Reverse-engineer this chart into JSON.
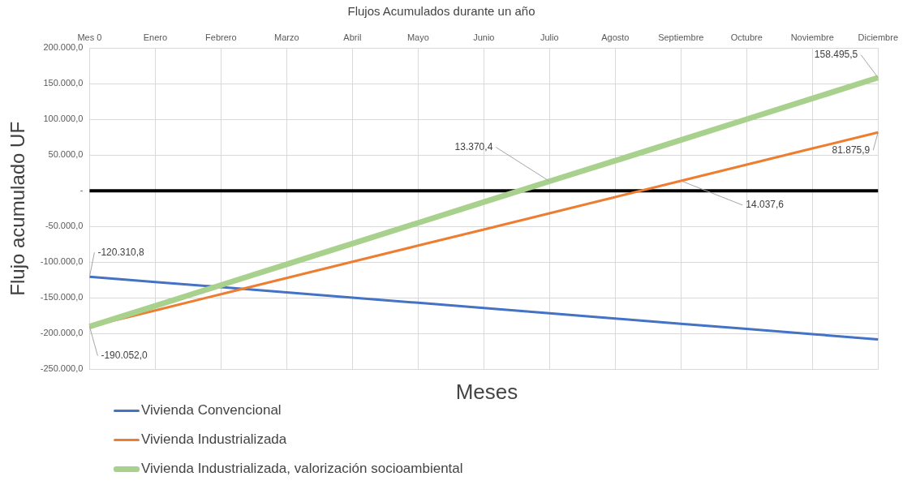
{
  "chart_data": {
    "type": "line",
    "title": "Flujos Acumulados durante un año",
    "xlabel": "Meses",
    "ylabel": "Flujo acumulado UF",
    "categories": [
      "Mes 0",
      "Enero",
      "Febrero",
      "Marzo",
      "Abril",
      "Mayo",
      "Junio",
      "Julio",
      "Agosto",
      "Septiembre",
      "Octubre",
      "Noviembre",
      "Diciembre"
    ],
    "series": [
      {
        "name": "Vivienda Convencional",
        "color": "#4472c4",
        "values": [
          -120310.8,
          -127600,
          -134900,
          -142200,
          -149500,
          -156800,
          -164200,
          -171500,
          -178800,
          -186100,
          -193400,
          -200700,
          -208000
        ],
        "value_labels": [
          "-120.310,8",
          null,
          null,
          null,
          null,
          null,
          null,
          null,
          null,
          null,
          null,
          null,
          null
        ]
      },
      {
        "name": "Vivienda Industrializada",
        "color": "#ed7d31",
        "values": [
          -190052.0,
          -167400,
          -144700,
          -122100,
          -99400,
          -76700,
          -54100,
          -31400,
          -8700,
          14037.6,
          36600,
          59300,
          81875.9
        ],
        "value_labels": [
          null,
          null,
          null,
          null,
          null,
          null,
          null,
          null,
          null,
          "14.037,6",
          null,
          null,
          "81.875,9"
        ]
      },
      {
        "name": "Vivienda Industrializada, valorización socioambiental",
        "color": "#a9d18e",
        "values": [
          -190052.0,
          -161000,
          -132000,
          -102900,
          -73900,
          -44800,
          -15800,
          13370.4,
          42200,
          71200,
          100300,
          129300,
          158495.5
        ],
        "value_labels": [
          "-190.052,0",
          null,
          null,
          null,
          null,
          null,
          null,
          "13.370,4",
          null,
          null,
          null,
          null,
          "158.495,5"
        ]
      }
    ],
    "ylim": [
      -250000,
      200000
    ],
    "yticks": [
      {
        "value": -250000,
        "label": "-250.000,0"
      },
      {
        "value": -200000,
        "label": "-200.000,0"
      },
      {
        "value": -150000,
        "label": "-150.000,0"
      },
      {
        "value": -100000,
        "label": "-100.000,0"
      },
      {
        "value": -50000,
        "label": "-50.000,0"
      },
      {
        "value": 0,
        "label": "-"
      },
      {
        "value": 50000,
        "label": "50.000,0"
      },
      {
        "value": 100000,
        "label": "100.000,0"
      },
      {
        "value": 150000,
        "label": "150.000,0"
      },
      {
        "value": 200000,
        "label": "200.000,0"
      }
    ],
    "ref_lines": [
      {
        "axis": "y",
        "value": 0,
        "color": "#000000"
      }
    ],
    "grid": true,
    "legend": "bottom left",
    "marker": "none",
    "line_style": "solid"
  }
}
